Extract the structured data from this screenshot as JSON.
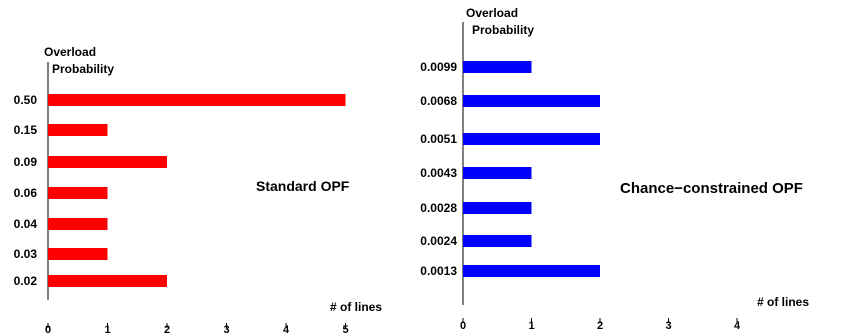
{
  "chart_data": [
    {
      "type": "bar",
      "orientation": "horizontal",
      "title": "Standard OPF",
      "ylabel_line1": "Overload",
      "ylabel_line2": "Probability",
      "xlabel": "# of lines",
      "categories": [
        "0.50",
        "0.15",
        "0.09",
        "0.06",
        "0.04",
        "0.03",
        "0.02"
      ],
      "values": [
        5,
        1,
        2,
        1,
        1,
        1,
        2
      ],
      "xticks": [
        "0",
        "1",
        "2",
        "3",
        "4",
        "5"
      ],
      "xlim": [
        0,
        5
      ],
      "color": "#ff0000"
    },
    {
      "type": "bar",
      "orientation": "horizontal",
      "title": "Chance−constrained OPF",
      "ylabel_line1": "Overload",
      "ylabel_line2": "Probability",
      "xlabel": "# of lines",
      "categories": [
        "0.0099",
        "0.0068",
        "0.0051",
        "0.0043",
        "0.0028",
        "0.0024",
        "0.0013"
      ],
      "values": [
        1,
        2,
        2,
        1,
        1,
        1,
        2
      ],
      "xticks": [
        "0",
        "1",
        "2",
        "3",
        "4"
      ],
      "xlim": [
        0,
        4
      ],
      "color": "#0000ff"
    }
  ]
}
